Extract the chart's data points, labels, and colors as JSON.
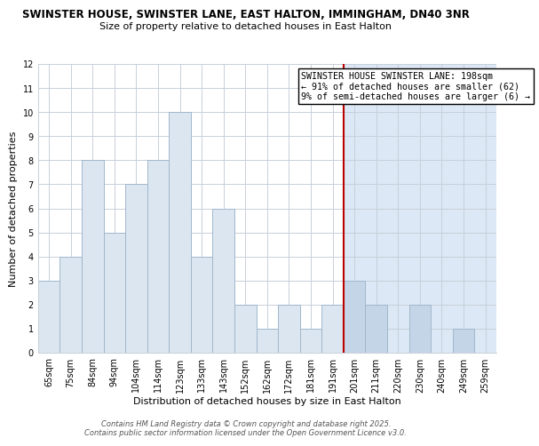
{
  "title_line1": "SWINSTER HOUSE, SWINSTER LANE, EAST HALTON, IMMINGHAM, DN40 3NR",
  "title_line2": "Size of property relative to detached houses in East Halton",
  "xlabel": "Distribution of detached houses by size in East Halton",
  "ylabel": "Number of detached properties",
  "bar_labels": [
    "65sqm",
    "75sqm",
    "84sqm",
    "94sqm",
    "104sqm",
    "114sqm",
    "123sqm",
    "133sqm",
    "143sqm",
    "152sqm",
    "162sqm",
    "172sqm",
    "181sqm",
    "191sqm",
    "201sqm",
    "211sqm",
    "220sqm",
    "230sqm",
    "240sqm",
    "249sqm",
    "259sqm"
  ],
  "bar_values": [
    3,
    4,
    8,
    5,
    7,
    8,
    10,
    4,
    6,
    2,
    1,
    2,
    1,
    2,
    3,
    2,
    0,
    2,
    0,
    1,
    0
  ],
  "bar_color_left": "#dce6f0",
  "bar_color_right": "#c5d5e8",
  "bar_edge_color": "#a0b8cc",
  "grid_color": "#c8d0da",
  "bg_color_left": "#ffffff",
  "bg_color_right": "#dce8f5",
  "vline_index": 14,
  "vline_color": "#bb0000",
  "annotation_text": "SWINSTER HOUSE SWINSTER LANE: 198sqm\n← 91% of detached houses are smaller (62)\n9% of semi-detached houses are larger (6) →",
  "ylim": [
    0,
    12
  ],
  "yticks": [
    0,
    1,
    2,
    3,
    4,
    5,
    6,
    7,
    8,
    9,
    10,
    11,
    12
  ],
  "footer_line1": "Contains HM Land Registry data © Crown copyright and database right 2025.",
  "footer_line2": "Contains public sector information licensed under the Open Government Licence v3.0.",
  "title_fontsize": 8.5,
  "subtitle_fontsize": 8.0,
  "axis_label_fontsize": 8.0,
  "tick_fontsize": 7.0,
  "annotation_fontsize": 7.2,
  "footer_fontsize": 6.0
}
